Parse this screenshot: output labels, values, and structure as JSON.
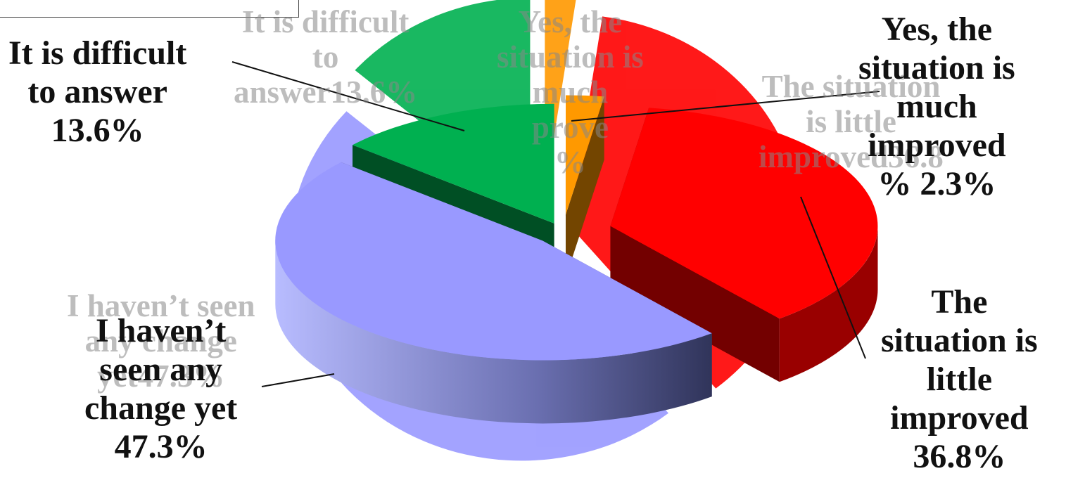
{
  "chart_data": {
    "type": "pie",
    "slices": [
      {
        "label": "It is difficult to answer",
        "value": 13.6,
        "display": "It is difficult\nto answer\n13.6%",
        "ghost": "It is difficult\nto\nanswer13.6%",
        "color": "#00B050"
      },
      {
        "label": "Yes, the situation is much improved",
        "value": 2.3,
        "display": "Yes, the\nsituation is\nmuch\nimproved\n% 2.3%",
        "ghost": "Yes, the\nsituation is\nmuch\nprove\n%",
        "color": "#FF9900"
      },
      {
        "label": "The situation is little improved",
        "value": 36.8,
        "display": "The\nsituation is\nlittle\nimproved\n36.8%",
        "ghost": "The situation\nis little\nimproved36.8",
        "color": "#FF0000"
      },
      {
        "label": "I haven’t seen any change yet",
        "value": 47.3,
        "display": "I haven’t\nseen any\nchange yet\n47.3%",
        "ghost": "I haven’t seen\nany change\nyet47.3%",
        "color": "#9999FF"
      }
    ]
  }
}
